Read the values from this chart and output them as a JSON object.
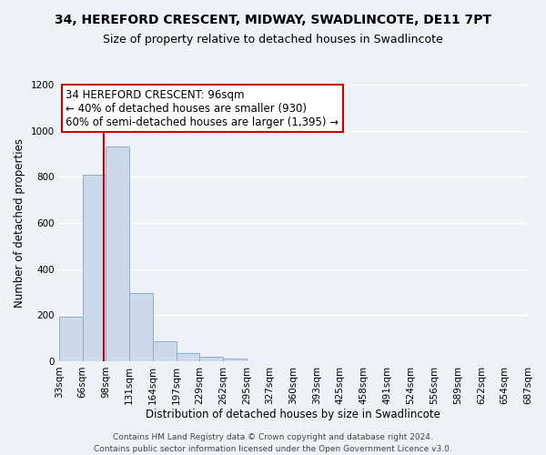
{
  "title": "34, HEREFORD CRESCENT, MIDWAY, SWADLINCOTE, DE11 7PT",
  "subtitle": "Size of property relative to detached houses in Swadlincote",
  "xlabel": "Distribution of detached houses by size in Swadlincote",
  "ylabel": "Number of detached properties",
  "bin_labels": [
    "33sqm",
    "66sqm",
    "98sqm",
    "131sqm",
    "164sqm",
    "197sqm",
    "229sqm",
    "262sqm",
    "295sqm",
    "327sqm",
    "360sqm",
    "393sqm",
    "425sqm",
    "458sqm",
    "491sqm",
    "524sqm",
    "556sqm",
    "589sqm",
    "622sqm",
    "654sqm",
    "687sqm"
  ],
  "bin_edges": [
    33,
    66,
    98,
    131,
    164,
    197,
    229,
    262,
    295,
    327,
    360,
    393,
    425,
    458,
    491,
    524,
    556,
    589,
    622,
    654,
    687
  ],
  "bar_heights": [
    195,
    810,
    930,
    295,
    85,
    35,
    20,
    10,
    0,
    0,
    0,
    0,
    0,
    0,
    0,
    0,
    0,
    0,
    0,
    0
  ],
  "bar_color": "#ccd9ea",
  "bar_edge_color": "#8aaed0",
  "vline_x": 96,
  "vline_color": "#cc0000",
  "ylim": [
    0,
    1200
  ],
  "yticks": [
    0,
    200,
    400,
    600,
    800,
    1000,
    1200
  ],
  "annotation_title": "34 HEREFORD CRESCENT: 96sqm",
  "annotation_line1": "← 40% of detached houses are smaller (930)",
  "annotation_line2": "60% of semi-detached houses are larger (1,395) →",
  "annotation_box_color": "#ffffff",
  "annotation_border_color": "#cc0000",
  "footer_line1": "Contains HM Land Registry data © Crown copyright and database right 2024.",
  "footer_line2": "Contains public sector information licensed under the Open Government Licence v3.0.",
  "background_color": "#eef2f7",
  "grid_color": "#ffffff",
  "title_fontsize": 10,
  "subtitle_fontsize": 9,
  "axis_label_fontsize": 8.5,
  "tick_fontsize": 7.5,
  "annotation_fontsize": 8.5,
  "footer_fontsize": 6.5
}
